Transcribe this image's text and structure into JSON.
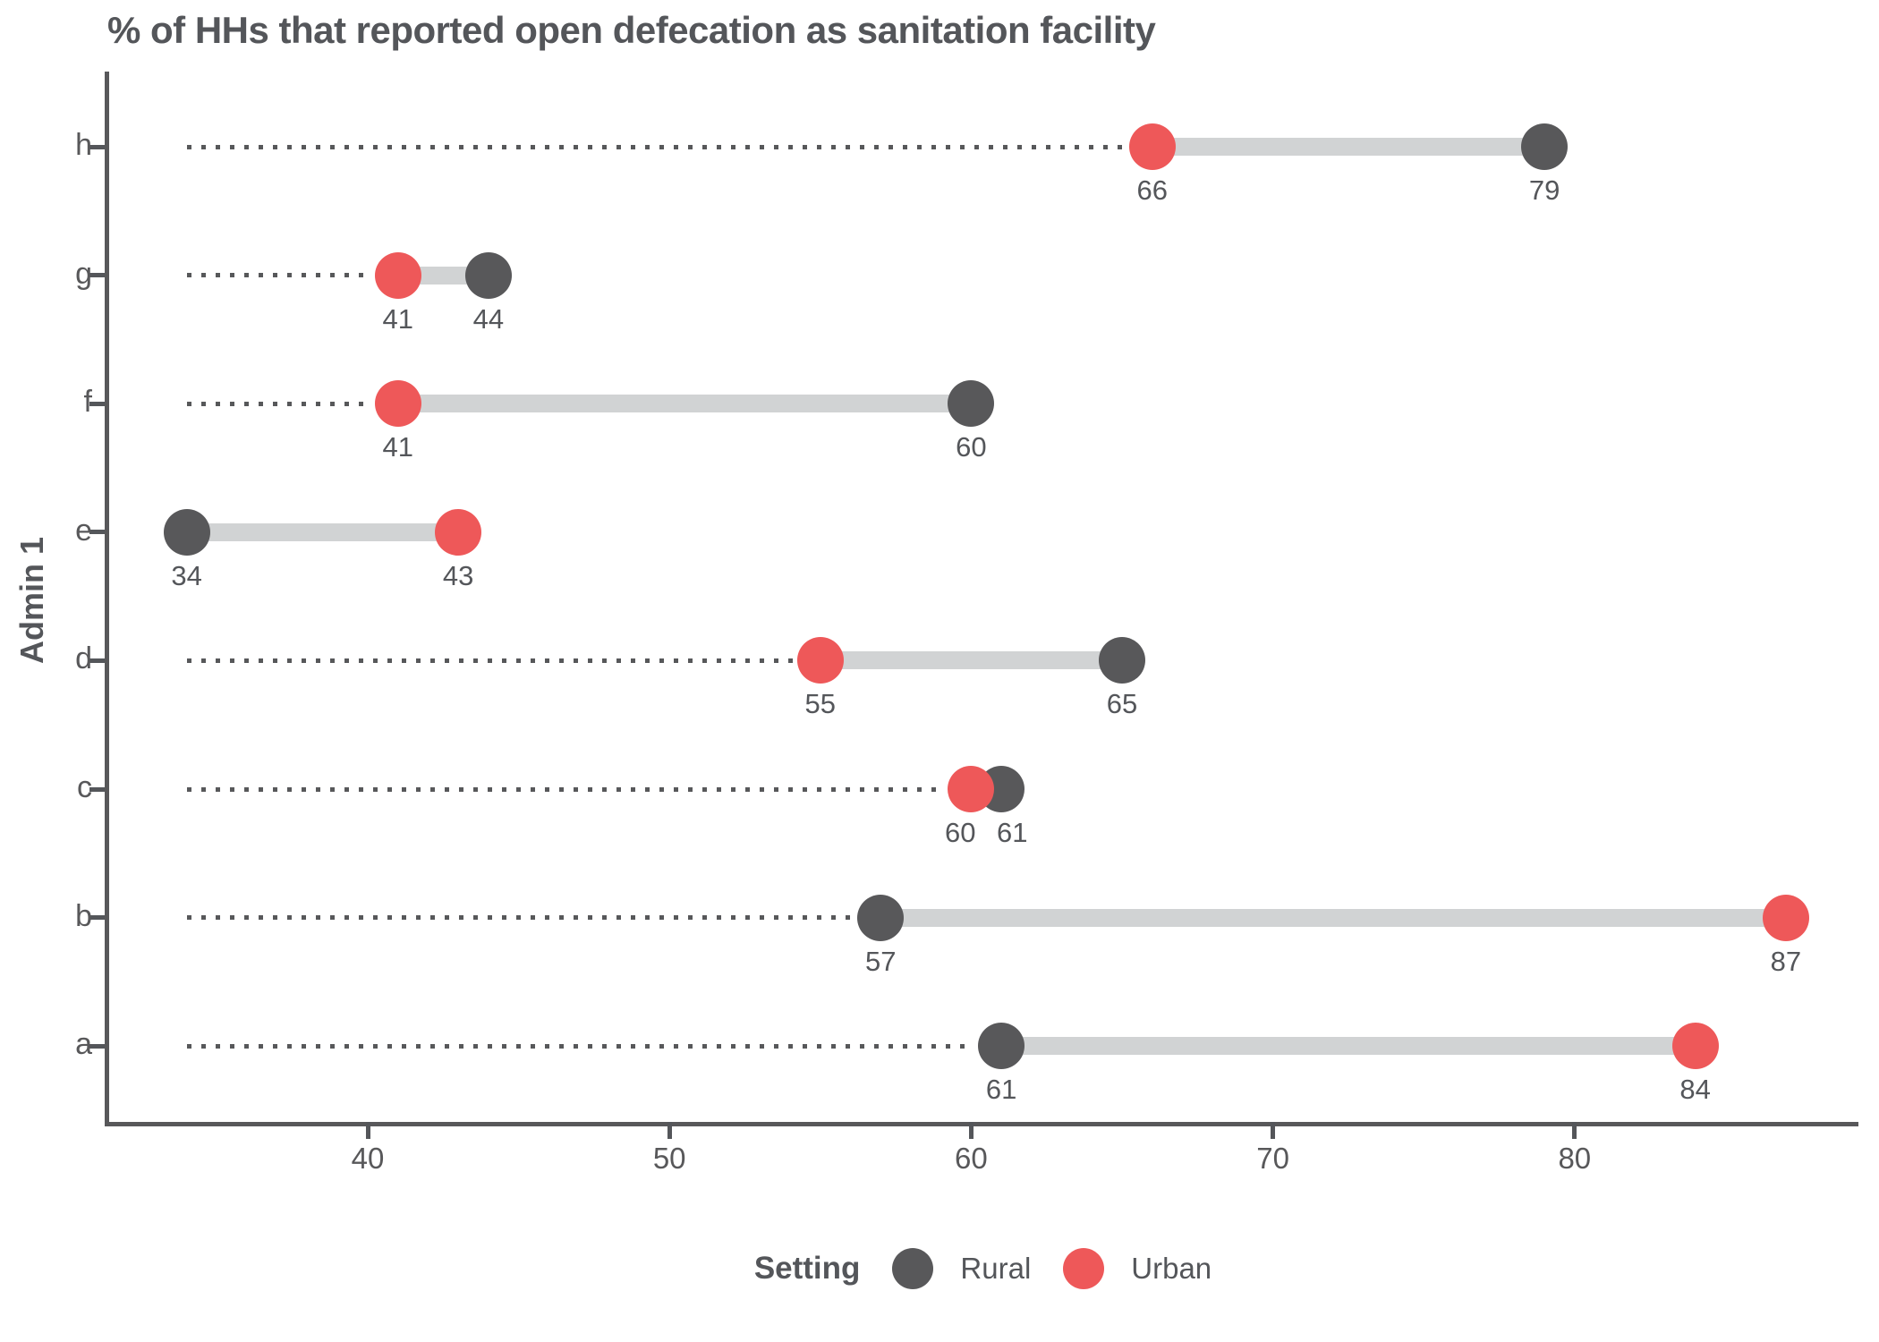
{
  "title": "% of HHs that reported open defecation as sanitation facility",
  "y_axis_label": "Admin 1",
  "legend": {
    "title": "Setting",
    "items": [
      {
        "label": "Rural",
        "color": "#58585A"
      },
      {
        "label": "Urban",
        "color": "#EE5859"
      }
    ]
  },
  "colors": {
    "rural": "#58585A",
    "urban": "#EE5859",
    "connector_bar": "#D1D3D4",
    "leader_dots": "#57585A",
    "axis": "#58585A",
    "text": "#54565A",
    "background": "#FFFFFF"
  },
  "chart_data": {
    "type": "dumbbell",
    "title": "% of HHs that reported open defecation as sanitation facility",
    "ylabel": "Admin 1",
    "xlabel": "",
    "categories": [
      "h",
      "g",
      "f",
      "e",
      "d",
      "c",
      "b",
      "a"
    ],
    "series": [
      {
        "name": "Rural",
        "color": "#58585A",
        "values": [
          79,
          44,
          60,
          34,
          65,
          61,
          57,
          61
        ]
      },
      {
        "name": "Urban",
        "color": "#EE5859",
        "values": [
          66,
          41,
          41,
          43,
          55,
          60,
          87,
          84
        ]
      }
    ],
    "x_ticks": [
      40,
      50,
      60,
      70,
      80
    ],
    "xlim": [
      31.4,
      88.9
    ],
    "leader_line_start_value": 34,
    "grid": "off",
    "legend_position": "bottom",
    "value_labels": "below points"
  }
}
